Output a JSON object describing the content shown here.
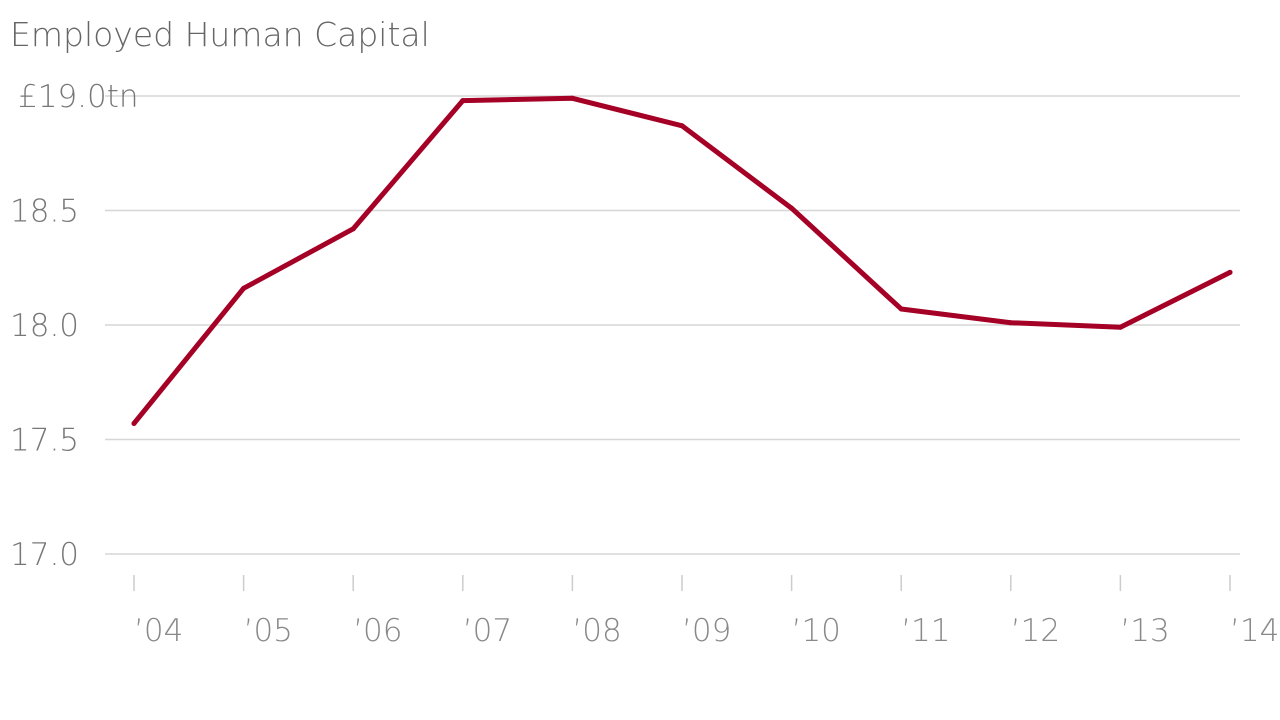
{
  "chart_data": {
    "type": "line",
    "title": "Employed Human Capital",
    "xlabel": "",
    "ylabel": "",
    "categories": [
      "’04",
      "’05",
      "’06",
      "’07",
      "’08",
      "’09",
      "’10",
      "’11",
      "’12",
      "’13",
      "’14"
    ],
    "series": [
      {
        "values": [
          17.57,
          18.16,
          18.42,
          18.98,
          18.99,
          18.87,
          18.51,
          18.07,
          18.01,
          17.99,
          18.23
        ],
        "color": "#a50026"
      }
    ],
    "yticks": [
      {
        "value": 19.0,
        "label": "£19.0tn"
      },
      {
        "value": 18.5,
        "label": "18.5"
      },
      {
        "value": 18.0,
        "label": "18.0"
      },
      {
        "value": 17.5,
        "label": "17.5"
      },
      {
        "value": 17.0,
        "label": "17.0"
      }
    ],
    "ylim": [
      17.0,
      19.0
    ],
    "grid": true,
    "legend": "none"
  }
}
